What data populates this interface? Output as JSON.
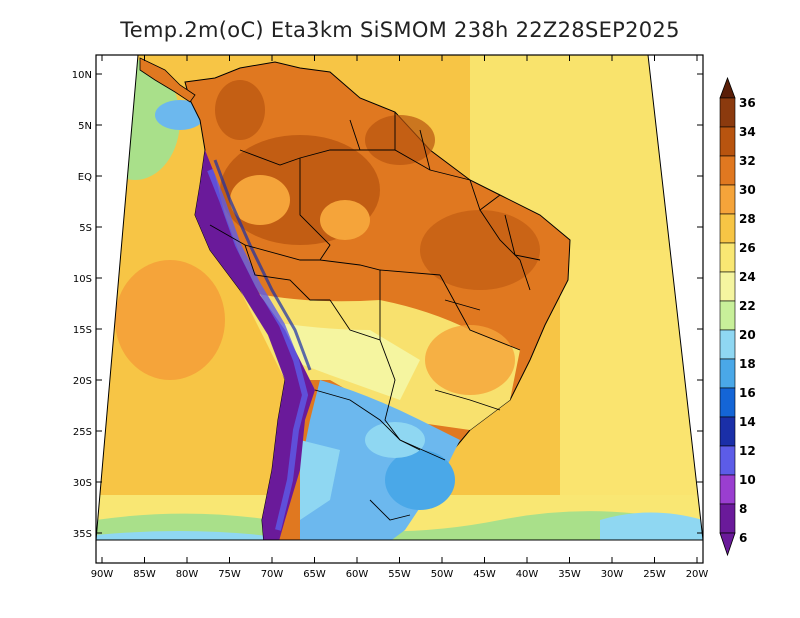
{
  "title": "Temp.2m(oC) Eta3km SiSMOM 238h 22Z28SEP2025",
  "lat_labels": [
    "10N",
    "5N",
    "EQ",
    "5S",
    "10S",
    "15S",
    "20S",
    "25S",
    "30S",
    "35S"
  ],
  "lon_labels": [
    "90W",
    "85W",
    "80W",
    "75W",
    "70W",
    "65W",
    "60W",
    "55W",
    "50W",
    "45W",
    "40W",
    "35W",
    "30W",
    "25W",
    "20W"
  ],
  "colorbar": {
    "labels": [
      "36",
      "34",
      "32",
      "30",
      "28",
      "26",
      "24",
      "22",
      "20",
      "18",
      "16",
      "14",
      "12",
      "10",
      "8",
      "6"
    ],
    "colors": [
      "#5a1e08",
      "#8b3a0e",
      "#b8540f",
      "#e07820",
      "#f5a43a",
      "#f7c545",
      "#f9e773",
      "#f5f5a0",
      "#c8f09a",
      "#8fd7f2",
      "#4aa8e8",
      "#1465d6",
      "#1a2fa8",
      "#5c5ce8",
      "#9a3ed0",
      "#6a1a9a"
    ]
  },
  "map_colors": {
    "ocean_warm": "#f7c545",
    "ocean_cool": "#f9e773",
    "ocean_cold": "#a9e08a",
    "land_hot": "#e07820",
    "land_very_hot": "#b8540f",
    "land_mild": "#f5f5a0",
    "land_cool": "#6cb8ee",
    "andes": "#6a1a9a",
    "borders": "#000000"
  }
}
